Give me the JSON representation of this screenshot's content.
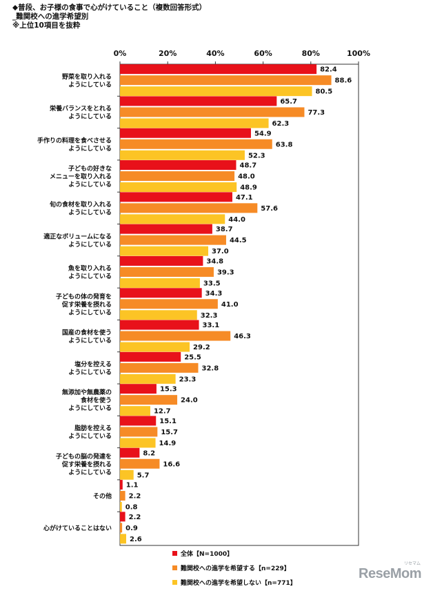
{
  "header": {
    "title": "◆普段、お子様の食事で心がけていること（複数回答形式）",
    "subtitle": "_難関校への進学希望別",
    "note": "※上位10項目を抜粋"
  },
  "brand": {
    "name": "ReseMom",
    "sub": "リセマム"
  },
  "colors": {
    "all": "#e8111a",
    "hope": "#f68b26",
    "nohope": "#fcc425"
  },
  "chart_data": {
    "type": "bar",
    "orientation": "horizontal",
    "xlim": [
      0,
      100
    ],
    "ticks": [
      "0%",
      "20%",
      "40%",
      "60%",
      "80%",
      "100%"
    ],
    "categories": [
      [
        "野菜を取り入れる",
        "ようにしている"
      ],
      [
        "栄養バランスをとれる",
        "ようにしている"
      ],
      [
        "手作りの料理を食べさせる",
        "ようにしている"
      ],
      [
        "子どもの好きな",
        "メニューを取り入れる",
        "ようにしている"
      ],
      [
        "旬の食材を取り入れる",
        "ようにしている"
      ],
      [
        "適正なボリュームになる",
        "ようにしている"
      ],
      [
        "魚を取り入れる",
        "ようにしている"
      ],
      [
        "子どもの体の発育を",
        "促す栄養を摂れる",
        "ようにしている"
      ],
      [
        "国産の食材を使う",
        "ようにしている"
      ],
      [
        "塩分を控える",
        "ようにしている"
      ],
      [
        "無添加や無農薬の",
        "食材を使う",
        "ようにしている"
      ],
      [
        "脂肪を控える",
        "ようにしている"
      ],
      [
        "子どもの脳の発達を",
        "促す栄養を摂れる",
        "ようにしている"
      ],
      [
        "その他"
      ],
      [
        "心がけていることはない"
      ]
    ],
    "series": [
      {
        "name": "全体【N=1000】",
        "color_key": "all",
        "values": [
          82.4,
          65.7,
          54.9,
          48.7,
          47.1,
          38.7,
          34.8,
          34.3,
          33.1,
          25.5,
          15.3,
          15.1,
          8.2,
          1.1,
          2.2
        ]
      },
      {
        "name": "難関校への進学を希望する【n=229】",
        "color_key": "hope",
        "values": [
          88.6,
          77.3,
          63.8,
          48.0,
          57.6,
          44.5,
          39.3,
          41.0,
          46.3,
          32.8,
          24.0,
          15.7,
          16.6,
          2.2,
          0.9
        ]
      },
      {
        "name": "難関校への進学を希望しない【n=771】",
        "color_key": "nohope",
        "values": [
          80.5,
          62.3,
          52.3,
          48.9,
          44.0,
          37.0,
          33.5,
          32.3,
          29.2,
          23.3,
          12.7,
          14.9,
          5.7,
          0.8,
          2.6
        ]
      }
    ]
  }
}
